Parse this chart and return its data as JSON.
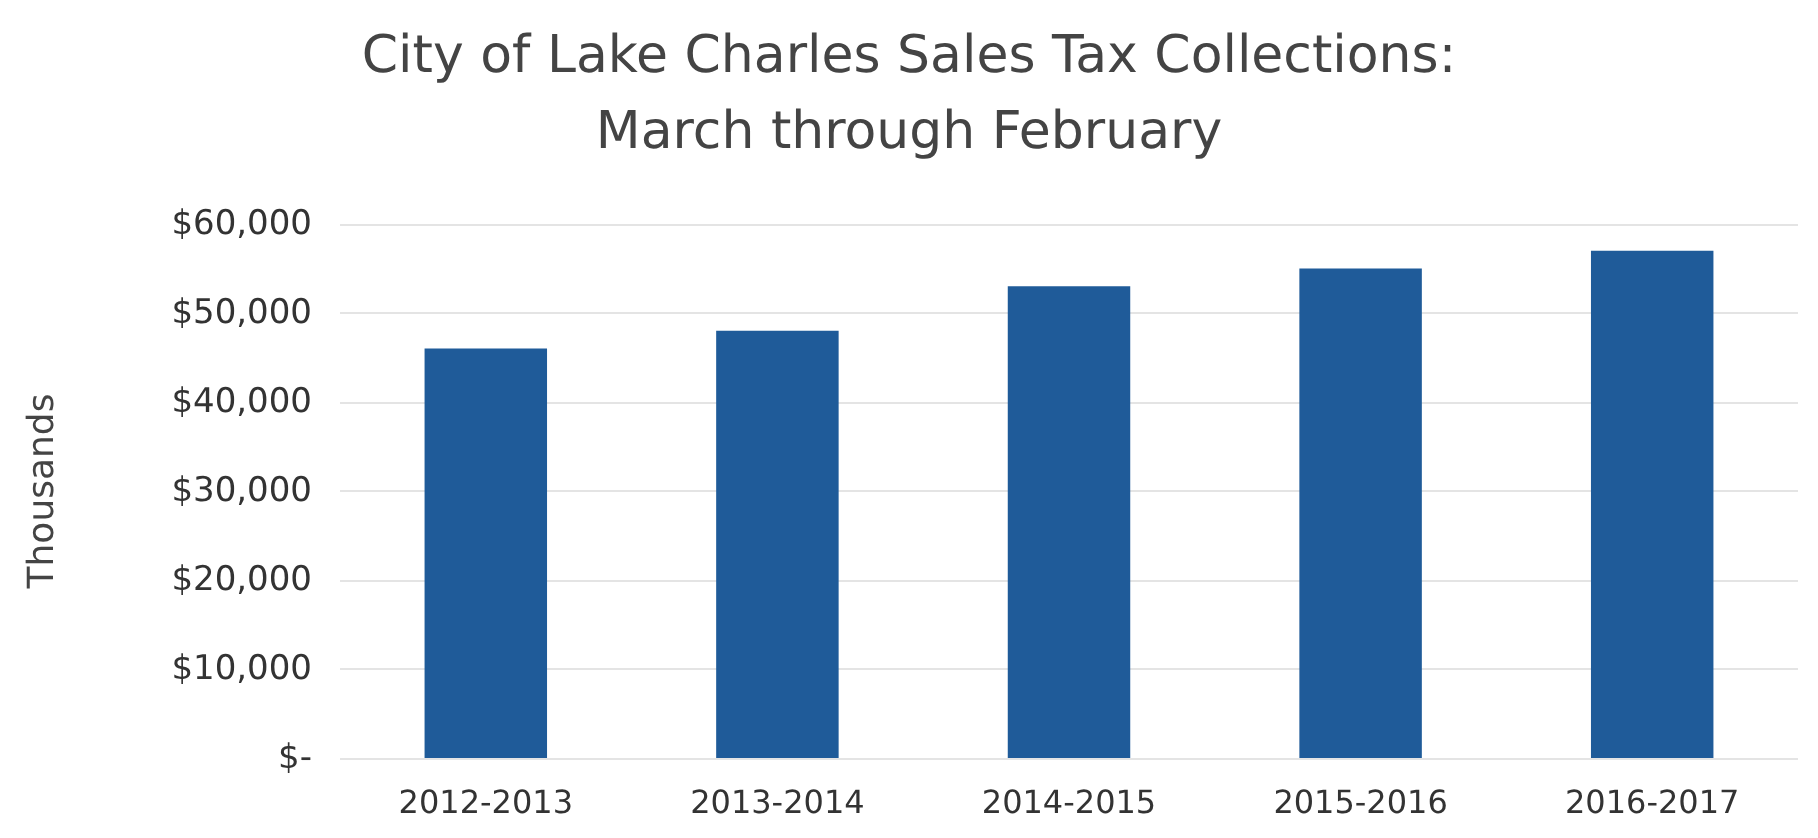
{
  "chart_data": {
    "type": "bar",
    "title": "City of Lake Charles Sales Tax Collections:\nMarch through February",
    "ylabel": "Thousands",
    "categories": [
      "2012-2013",
      "2013-2014",
      "2014-2015",
      "2015-2016",
      "2016-2017"
    ],
    "values": [
      46000,
      48000,
      53000,
      55000,
      57000
    ],
    "color": "#1f5b99",
    "ylim": [
      0,
      60000
    ],
    "yticks": [
      {
        "value": 0,
        "label": "$-"
      },
      {
        "value": 10000,
        "label": "$10,000"
      },
      {
        "value": 20000,
        "label": "$20,000"
      },
      {
        "value": 30000,
        "label": "$30,000"
      },
      {
        "value": 40000,
        "label": "$40,000"
      },
      {
        "value": 50000,
        "label": "$50,000"
      },
      {
        "value": 60000,
        "label": "$60,000"
      }
    ],
    "grid": "y"
  }
}
